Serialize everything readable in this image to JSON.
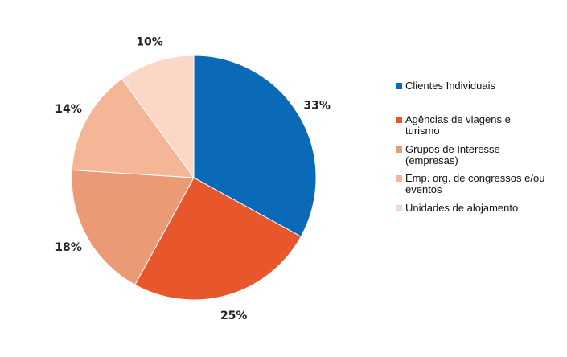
{
  "chart_data": {
    "type": "pie",
    "slices": [
      {
        "label": "Clientes Individuais",
        "value": 33,
        "display": "33%",
        "color": "#0a6ab7"
      },
      {
        "label": "Agências de viagens e turismo",
        "value": 25,
        "display": "25%",
        "color": "#e8562b"
      },
      {
        "label": "Grupos de Interesse (empresas)",
        "value": 18,
        "display": "18%",
        "color": "#ea9a75"
      },
      {
        "label": "Emp. org. de congressos e/ou eventos",
        "value": 14,
        "display": "14%",
        "color": "#f4b697"
      },
      {
        "label": "Unidades de alojamento",
        "value": 10,
        "display": "10%",
        "color": "#fbd7c6"
      }
    ],
    "legend_position": "right"
  }
}
